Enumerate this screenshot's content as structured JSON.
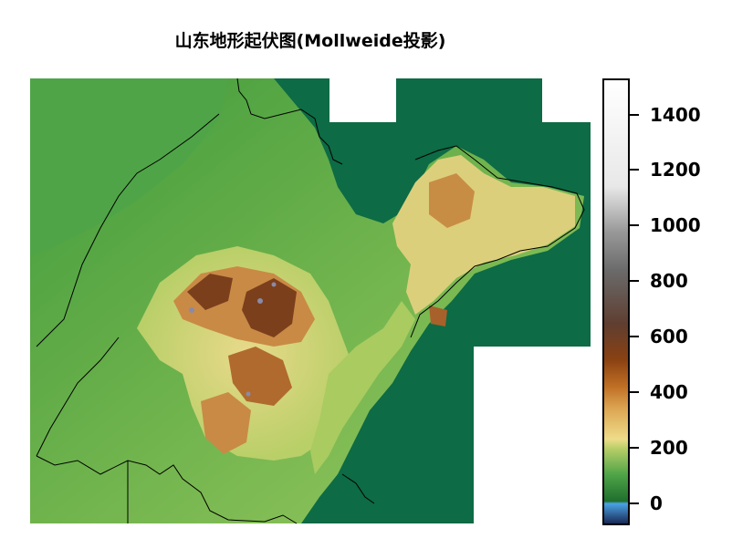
{
  "title": "山东地形起伏图(Mollweide投影)",
  "colorbar": {
    "ticks": [
      {
        "label": "0",
        "value": 0
      },
      {
        "label": "200",
        "value": 200
      },
      {
        "label": "400",
        "value": 400
      },
      {
        "label": "600",
        "value": 600
      },
      {
        "label": "800",
        "value": 800
      },
      {
        "label": "1000",
        "value": 1000
      },
      {
        "label": "1200",
        "value": 1200
      },
      {
        "label": "1400",
        "value": 1400
      }
    ],
    "range": [
      -80,
      1530
    ]
  },
  "colors": {
    "sea": "#0d6b45",
    "lowland": "#3f9a3c",
    "plain": "#8cc05a",
    "hill_yellow": "#e6d889",
    "hill_orange": "#c9803a",
    "mountain_brown": "#7a3e1a",
    "peak_gray": "#6e6e8a"
  }
}
